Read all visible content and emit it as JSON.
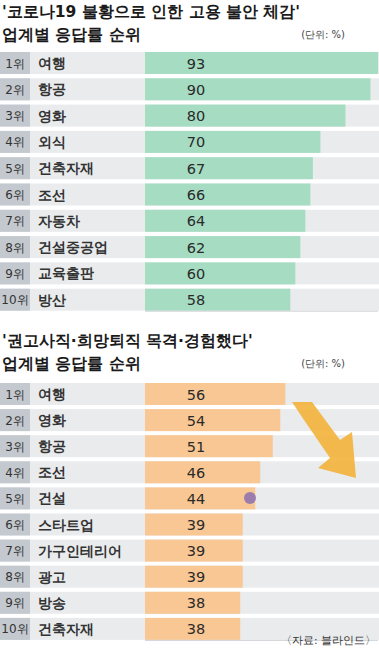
{
  "chart_data": [
    {
      "type": "bar",
      "orientation": "horizontal",
      "title": "'코로나19 불황으로 인한 고용 불안 체감'",
      "subtitle": "업계별 응답률 순위",
      "annotations": [
        "(단위: %)"
      ],
      "ranks": [
        "1위",
        "2위",
        "3위",
        "4위",
        "5위",
        "6위",
        "7위",
        "8위",
        "9위",
        "10위"
      ],
      "categories": [
        "여행",
        "항공",
        "영화",
        "외식",
        "건축자재",
        "조선",
        "자동차",
        "건설중공업",
        "교육출판",
        "방산"
      ],
      "values": [
        93,
        90,
        80,
        70,
        67,
        66,
        64,
        62,
        60,
        58
      ],
      "color": "#a6dcc2",
      "xlim": [
        0,
        93
      ],
      "data_labels": true,
      "tick_labels": false,
      "grid": false
    },
    {
      "type": "bar",
      "orientation": "horizontal",
      "title": "'권고사직·희망퇴직 목격·경험했다'",
      "subtitle": "업계별 응답률 순위",
      "annotations": [
        "(단위: %)"
      ],
      "ranks": [
        "1위",
        "2위",
        "3위",
        "4위",
        "5위",
        "6위",
        "7위",
        "8위",
        "9위",
        "10위"
      ],
      "categories": [
        "여행",
        "영화",
        "항공",
        "조선",
        "건설",
        "스타트업",
        "가구인테리어",
        "광고",
        "방송",
        "건축자재"
      ],
      "values": [
        56,
        54,
        51,
        46,
        44,
        39,
        39,
        39,
        38,
        38
      ],
      "color": "#f8c793",
      "xlim": [
        0,
        93
      ],
      "data_labels": true,
      "tick_labels": false,
      "grid": false
    }
  ],
  "source": "〈자료: 블라인드〉"
}
